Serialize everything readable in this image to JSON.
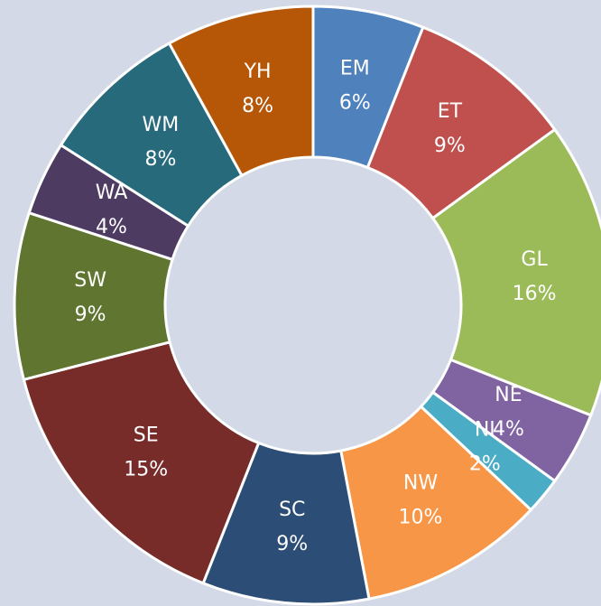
{
  "chart_data": {
    "type": "donut",
    "categories": [
      "EM",
      "ET",
      "GL",
      "NE",
      "NI",
      "NW",
      "SC",
      "SE",
      "SW",
      "WA",
      "WM",
      "YH"
    ],
    "values": [
      6,
      9,
      16,
      4,
      2,
      10,
      9,
      15,
      9,
      4,
      8,
      8
    ],
    "value_labels": [
      "6%",
      "9%",
      "16%",
      "4%",
      "2%",
      "10%",
      "9%",
      "15%",
      "9%",
      "4%",
      "8%",
      "8%"
    ],
    "colors": [
      "#4f81bd",
      "#c0504d",
      "#9bbb59",
      "#8064a2",
      "#4bacc6",
      "#f79646",
      "#2c4d75",
      "#772c2a",
      "#5f7530",
      "#4d3b62",
      "#276a7c",
      "#b65708"
    ]
  }
}
